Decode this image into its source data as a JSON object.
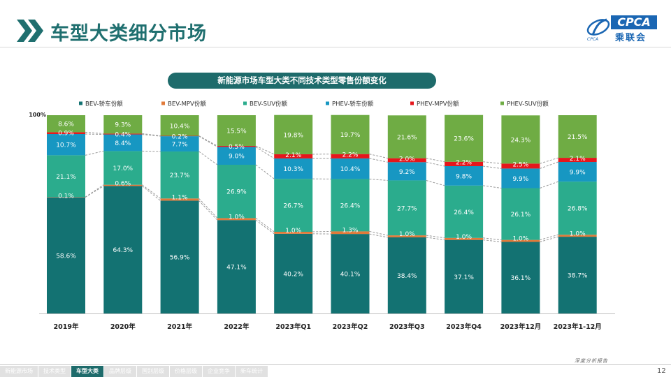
{
  "header": {
    "title": "车型大类细分市场"
  },
  "logo": {
    "text": "CPCA",
    "sub": "乘联会",
    "small": "CPCA"
  },
  "subtitle": "新能源市场车型大类不同技术类型零售份额变化",
  "colors": {
    "BEV-轿车份额": "#137272",
    "BEV-MPV份额": "#e07a3a",
    "BEV-SUV份额": "#2bac8d",
    "PHEV-轿车份额": "#1797c2",
    "PHEV-MPV份额": "#e5161c",
    "PHEV-SUV份额": "#6fac44",
    "title_teal": "#1f6f6f"
  },
  "chart_data": {
    "type": "bar",
    "stacked": true,
    "title": "新能源市场车型大类不同技术类型零售份额变化",
    "categories": [
      "2019年",
      "2020年",
      "2021年",
      "2022年",
      "2023年Q1",
      "2023年Q2",
      "2023年Q3",
      "2023年Q4",
      "2023年12月",
      "2023年1-12月"
    ],
    "series": [
      {
        "name": "BEV-轿车份额",
        "values": [
          58.6,
          64.3,
          56.9,
          47.1,
          40.2,
          40.1,
          38.4,
          37.1,
          36.1,
          38.7
        ],
        "labels": [
          "58.6%",
          "64.3%",
          "56.9%",
          "47.1%",
          "40.2%",
          "40.1%",
          "38.4%",
          "37.1%",
          "36.1%",
          "38.7%"
        ]
      },
      {
        "name": "BEV-MPV份额",
        "values": [
          0.1,
          0.6,
          1.1,
          1.0,
          1.0,
          1.3,
          1.0,
          1.0,
          1.0,
          1.0
        ],
        "labels": [
          "0.1%",
          "0.6%",
          "1.1%",
          "1.0%",
          "1.0%",
          "1.3%",
          "1.0%",
          "1.0%",
          "1.0%",
          "1.0%"
        ]
      },
      {
        "name": "BEV-SUV份额",
        "values": [
          21.1,
          17.0,
          23.7,
          26.9,
          26.7,
          26.4,
          27.7,
          26.4,
          26.1,
          26.8
        ],
        "labels": [
          "21.1%",
          "17.0%",
          "23.7%",
          "26.9%",
          "26.7%",
          "26.4%",
          "27.7%",
          "26.4%",
          "26.1%",
          "26.8%"
        ]
      },
      {
        "name": "PHEV-轿车份额",
        "values": [
          10.7,
          8.4,
          7.7,
          9.0,
          10.3,
          10.4,
          9.2,
          9.8,
          9.9,
          9.9
        ],
        "labels": [
          "10.7%",
          "8.4%",
          "7.7%",
          "9.0%",
          "10.3%",
          "10.4%",
          "9.2%",
          "9.8%",
          "9.9%",
          "9.9%"
        ]
      },
      {
        "name": "PHEV-MPV份额",
        "values": [
          0.9,
          0.4,
          0.2,
          0.5,
          2.1,
          2.2,
          2.0,
          2.2,
          2.5,
          2.1
        ],
        "labels": [
          "0.9%",
          "0.4%",
          "0.2%",
          "0.5%",
          "2.1%",
          "2.2%",
          "2.0%",
          "2.2%",
          "2.5%",
          "2.1%"
        ]
      },
      {
        "name": "PHEV-SUV份额",
        "values": [
          8.6,
          9.3,
          10.4,
          15.5,
          19.8,
          19.7,
          21.6,
          23.6,
          24.3,
          21.5
        ],
        "labels": [
          "8.6%",
          "9.3%",
          "10.4%",
          "15.5%",
          "19.8%",
          "19.7%",
          "21.6%",
          "23.6%",
          "24.3%",
          "21.5%"
        ]
      }
    ],
    "ylim": [
      0,
      100
    ],
    "ytick_labels": [
      "100%"
    ],
    "legend": "top",
    "grid": false,
    "connector_lines": "dashed"
  },
  "footer": {
    "nav": [
      "新能源市场",
      "技术类型",
      "车型大类",
      "品牌层级",
      "国别层级",
      "价格层级",
      "企业竞争",
      "新车统计"
    ],
    "active_index": 2,
    "report_label": "深度分析报告",
    "page_number": "12"
  }
}
